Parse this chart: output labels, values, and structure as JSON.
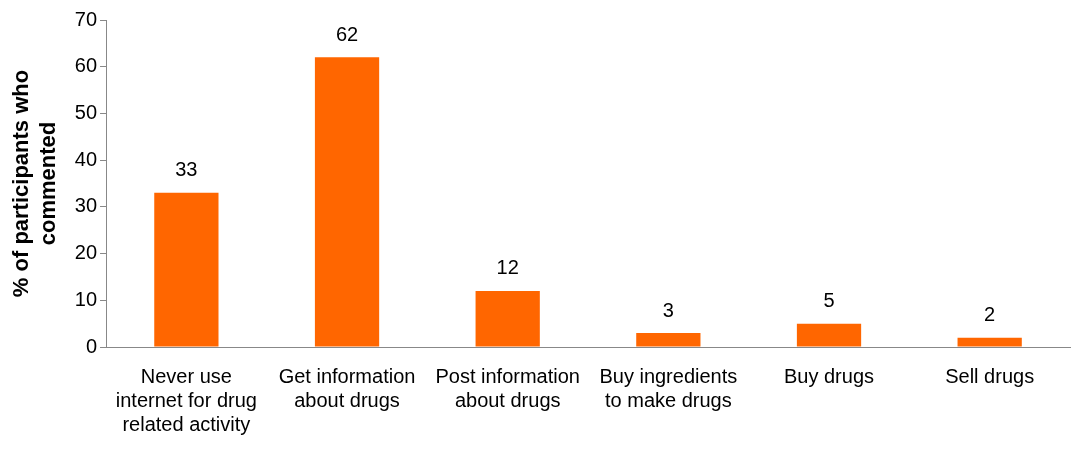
{
  "chart_data": {
    "type": "bar",
    "ylabel": "% of participants who commented",
    "categories": [
      "Never use internet for drug related activity",
      "Get information about drugs",
      "Post information about drugs",
      "Buy ingredients to make drugs",
      "Buy drugs",
      "Sell drugs"
    ],
    "values": [
      33,
      62,
      12,
      3,
      5,
      2
    ],
    "color": "#ff6600",
    "ylim": [
      0,
      70
    ],
    "yticks": [
      0,
      10,
      20,
      30,
      40,
      50,
      60,
      70
    ],
    "data_labels": true,
    "grid": false,
    "legend": false
  }
}
